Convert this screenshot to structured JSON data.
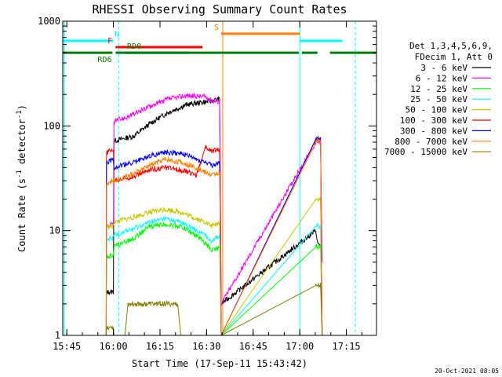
{
  "chart_data": {
    "type": "line",
    "title": "RHESSI Observing Summary Count Rates",
    "xlabel": "Start Time (17-Sep-11 15:43:42)",
    "ylabel_main": "Count Rate (s",
    "ylabel_sup1": "-1",
    "ylabel_mid": " detector",
    "ylabel_sup2": "-1",
    "ylabel_end": ")",
    "x_unit": "minutes since 15:43:42",
    "xlim": [
      0,
      101
    ],
    "ylim": [
      1,
      1000
    ],
    "yscale": "log",
    "x_ticks": [
      {
        "t": 1.3,
        "label": "15:45"
      },
      {
        "t": 16.3,
        "label": "16:00"
      },
      {
        "t": 31.3,
        "label": "16:15"
      },
      {
        "t": 46.3,
        "label": "16:30"
      },
      {
        "t": 61.3,
        "label": "16:45"
      },
      {
        "t": 76.3,
        "label": "17:00"
      },
      {
        "t": 91.3,
        "label": "17:15"
      }
    ],
    "y_ticks": [
      {
        "v": 1,
        "label": "1"
      },
      {
        "v": 10,
        "label": "10"
      },
      {
        "v": 100,
        "label": "100"
      },
      {
        "v": 1000,
        "label": "1000"
      }
    ],
    "legend_header": [
      "Det 1,3,4,5,6,9,",
      "FDecim 1, Att 0"
    ],
    "legend_placement": "right",
    "series": [
      {
        "name": "3 - 6 keV",
        "color": "#000000",
        "segments": [
          [
            [
              14,
              2
            ],
            [
              14.1,
              2.6
            ],
            [
              16.3,
              2.6
            ],
            [
              16.5,
              72
            ],
            [
              23,
              80
            ],
            [
              28,
              105
            ],
            [
              34,
              135
            ],
            [
              40,
              160
            ],
            [
              46,
              170
            ],
            [
              48,
              175
            ],
            [
              50.5,
              180
            ],
            [
              51,
              2
            ],
            [
              81.5,
              10
            ],
            [
              81.8,
              8
            ],
            [
              83,
              7
            ],
            [
              83.5,
              5
            ]
          ]
        ]
      },
      {
        "name": "6 - 12 keV",
        "color": "#ff00ff",
        "segments": [
          [
            [
              14,
              11
            ],
            [
              14.1,
              11
            ],
            [
              16.3,
              11.5
            ],
            [
              16.5,
              110
            ],
            [
              22,
              125
            ],
            [
              28,
              155
            ],
            [
              34,
              180
            ],
            [
              40,
              195
            ],
            [
              46,
              190
            ],
            [
              48,
              175
            ],
            [
              50.5,
              170
            ],
            [
              51,
              2
            ],
            [
              81.5,
              70
            ],
            [
              83,
              70
            ],
            [
              83.5,
              5
            ]
          ]
        ]
      },
      {
        "name": "12 - 25 keV",
        "color": "#00ff00",
        "segments": [
          [
            [
              14,
              1
            ],
            [
              14.1,
              5.5
            ],
            [
              16.3,
              6
            ],
            [
              16.5,
              7
            ],
            [
              23,
              8.5
            ],
            [
              28,
              11
            ],
            [
              33,
              11.5
            ],
            [
              38,
              11
            ],
            [
              43,
              9
            ],
            [
              46,
              7.5
            ],
            [
              48,
              6.5
            ],
            [
              50.5,
              7
            ],
            [
              51,
              1
            ],
            [
              81.5,
              7
            ],
            [
              83,
              7
            ],
            [
              83.5,
              1
            ]
          ]
        ]
      },
      {
        "name": "25 - 50 keV",
        "color": "#00ffff",
        "segments": [
          [
            [
              14,
              1
            ],
            [
              14.1,
              8
            ],
            [
              16.3,
              8.5
            ],
            [
              16.5,
              9
            ],
            [
              23,
              10.5
            ],
            [
              28,
              12
            ],
            [
              33,
              13
            ],
            [
              38,
              12
            ],
            [
              43,
              10
            ],
            [
              46,
              9
            ],
            [
              48,
              8
            ],
            [
              50.5,
              9
            ],
            [
              51,
              1
            ],
            [
              81.5,
              11
            ],
            [
              83,
              11
            ],
            [
              83.5,
              1
            ]
          ]
        ]
      },
      {
        "name": "50 - 100 keV",
        "color": "#c8c800",
        "segments": [
          [
            [
              14,
              1
            ],
            [
              14.1,
              11
            ],
            [
              16.3,
              11
            ],
            [
              16.5,
              12
            ],
            [
              23,
              13.5
            ],
            [
              28,
              15
            ],
            [
              33,
              16
            ],
            [
              38,
              15
            ],
            [
              43,
              13
            ],
            [
              46,
              12
            ],
            [
              48,
              11
            ],
            [
              50.5,
              12
            ],
            [
              51,
              1
            ],
            [
              81.5,
              20
            ],
            [
              83,
              20
            ],
            [
              83.5,
              1
            ]
          ]
        ]
      },
      {
        "name": "100 - 300 keV",
        "color": "#ff0000",
        "segments": [
          [
            [
              14,
              1
            ],
            [
              14.1,
              55
            ],
            [
              16.3,
              60
            ],
            [
              16.5,
              30
            ],
            [
              23,
              33
            ],
            [
              28,
              38
            ],
            [
              33,
              40
            ],
            [
              38,
              38
            ],
            [
              43,
              34
            ],
            [
              46,
              62
            ],
            [
              48,
              58
            ],
            [
              50.5,
              60
            ],
            [
              51,
              1
            ],
            [
              81.5,
              75
            ],
            [
              83,
              75
            ],
            [
              83.5,
              1
            ]
          ]
        ]
      },
      {
        "name": "300 - 800 keV",
        "color": "#0000ff",
        "segments": [
          [
            [
              14,
              1
            ],
            [
              14.1,
              45
            ],
            [
              16.3,
              48
            ],
            [
              16.5,
              40
            ],
            [
              23,
              45
            ],
            [
              28,
              52
            ],
            [
              33,
              56
            ],
            [
              38,
              55
            ],
            [
              43,
              48
            ],
            [
              46,
              45
            ],
            [
              48,
              42
            ],
            [
              50.5,
              44
            ],
            [
              51,
              1
            ],
            [
              81.5,
              75
            ],
            [
              83,
              75
            ],
            [
              83.5,
              1
            ]
          ]
        ]
      },
      {
        "name": "800 - 7000 keV",
        "color": "#ff8000",
        "segments": [
          [
            [
              14,
              1
            ],
            [
              14.1,
              28
            ],
            [
              16.3,
              30
            ],
            [
              16.5,
              30
            ],
            [
              23,
              35
            ],
            [
              28,
              42
            ],
            [
              33,
              48
            ],
            [
              38,
              45
            ],
            [
              43,
              40
            ],
            [
              46,
              36
            ],
            [
              48,
              34
            ],
            [
              50.5,
              36
            ],
            [
              51,
              1
            ],
            [
              81.5,
              70
            ],
            [
              83,
              70
            ],
            [
              83.5,
              1
            ]
          ]
        ]
      },
      {
        "name": "7000 - 15000 keV",
        "color": "#808000",
        "segments": [
          [
            [
              14,
              1
            ],
            [
              14.1,
              1.2
            ],
            [
              16.3,
              1.2
            ],
            [
              16.5,
              1
            ],
            [
              20,
              1
            ],
            [
              21,
              2
            ],
            [
              37,
              2
            ],
            [
              38,
              1
            ],
            [
              51,
              1
            ],
            [
              81.5,
              3
            ],
            [
              83,
              3
            ],
            [
              83.5,
              1
            ]
          ]
        ]
      }
    ],
    "flag_bars": [
      {
        "label": "N",
        "color": "#00ffff",
        "y": 650,
        "spans": [
          [
            0,
            16.3
          ],
          [
            76.3,
            90
          ]
        ],
        "label_t": 17.5
      },
      {
        "label": "F",
        "color": "#ff0000",
        "y": 565,
        "spans": [
          [
            17,
            45
          ]
        ],
        "label_t": 15.2
      },
      {
        "label": "S",
        "color": "#ff8000",
        "y": 760,
        "spans": [
          [
            51,
            76.3
          ]
        ],
        "label_t": 49.5
      },
      {
        "label": "RD0",
        "color": "#008000",
        "y": 500,
        "spans": [
          [
            0,
            16
          ],
          [
            17,
            51
          ],
          [
            51,
            76
          ],
          [
            77,
            82
          ],
          [
            86,
            101
          ]
        ],
        "label_t": 23
      },
      {
        "label": "RD6",
        "color": "#008000",
        "y": 500,
        "spans": [
          [
            20,
            41
          ]
        ],
        "label_t": 13.5
      }
    ],
    "vlines": [
      {
        "t": 0.5,
        "color": "#00ffff",
        "style": "solid"
      },
      {
        "t": 18.1,
        "color": "#00ffff",
        "style": "dashed"
      },
      {
        "t": 51.5,
        "color": "#ff8000",
        "style": "solid"
      },
      {
        "t": 76.3,
        "color": "#00ffff",
        "style": "solid"
      },
      {
        "t": 94.2,
        "color": "#00ffff",
        "style": "dashed"
      }
    ]
  },
  "footer_date": "20-Oct-2021 08:05"
}
